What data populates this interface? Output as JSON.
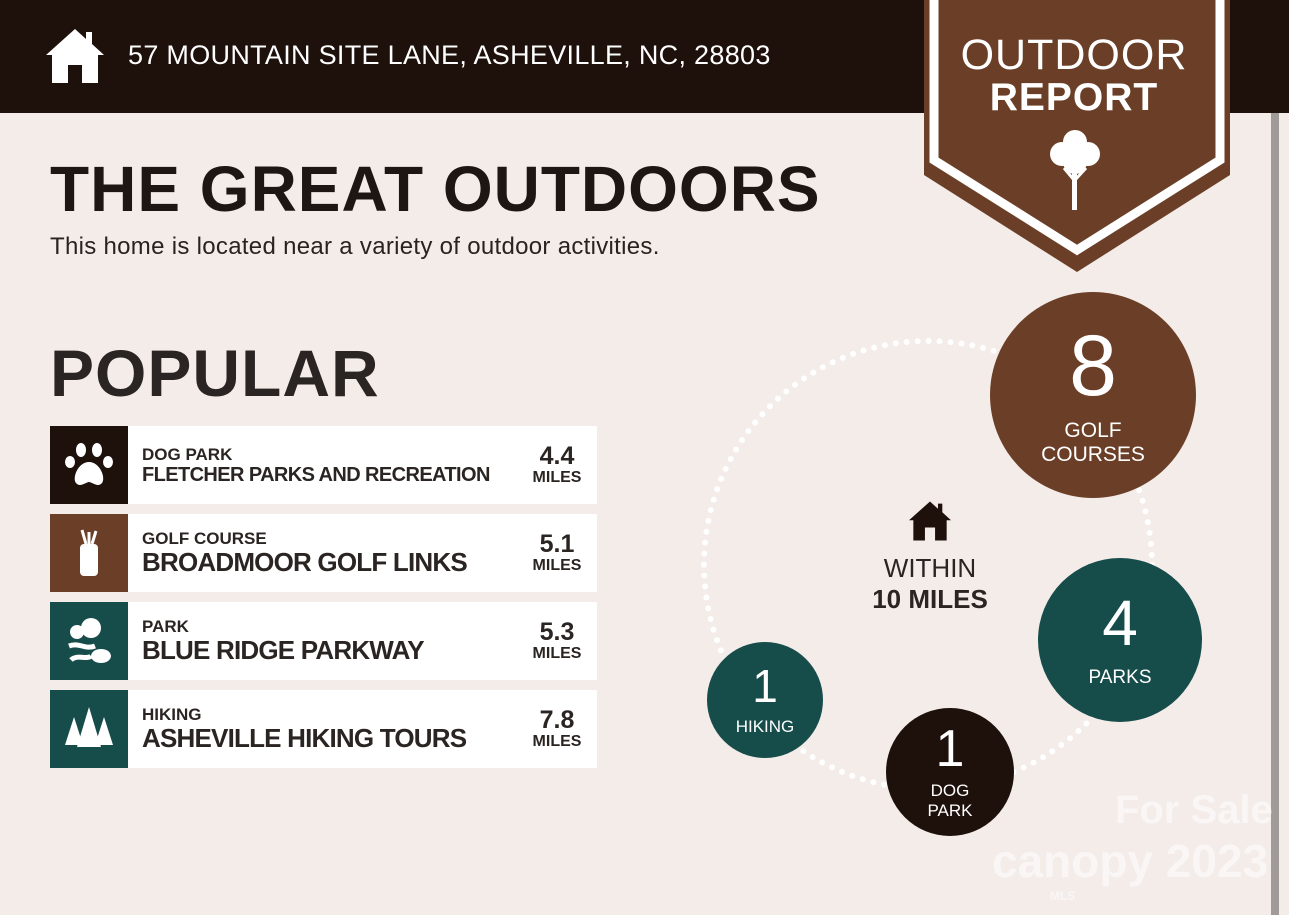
{
  "header": {
    "address": "57 MOUNTAIN SITE LANE, ASHEVILLE, NC, 28803",
    "icon": "home-icon"
  },
  "banner": {
    "line1": "OUTDOOR",
    "line2": "REPORT",
    "icon": "tree-icon"
  },
  "title": "THE GREAT OUTDOORS",
  "subtitle": "This home is located near a variety of outdoor activities.",
  "popular": {
    "heading": "POPULAR",
    "items": [
      {
        "category": "DOG PARK",
        "name": "FLETCHER PARKS AND RECREATION",
        "distance": "4.4",
        "unit": "MILES",
        "icon": "paw-icon",
        "color": "#1e100b"
      },
      {
        "category": "GOLF COURSE",
        "name": "BROADMOOR GOLF LINKS",
        "distance": "5.1",
        "unit": "MILES",
        "icon": "golf-bag-icon",
        "color": "#6b3f27"
      },
      {
        "category": "PARK",
        "name": "BLUE RIDGE PARKWAY",
        "distance": "5.3",
        "unit": "MILES",
        "icon": "park-trees-icon",
        "color": "#164c4a"
      },
      {
        "category": "HIKING",
        "name": "ASHEVILLE HIKING TOURS",
        "distance": "7.8",
        "unit": "MILES",
        "icon": "pine-trees-icon",
        "color": "#164c4a"
      }
    ]
  },
  "within": {
    "line1": "WITHIN",
    "line2": "10 MILES"
  },
  "counts": [
    {
      "count": "8",
      "label1": "GOLF",
      "label2": "COURSES",
      "color": "#6b3f27"
    },
    {
      "count": "4",
      "label1": "PARKS",
      "label2": "",
      "color": "#164c4a"
    },
    {
      "count": "1",
      "label1": "DOG",
      "label2": "PARK",
      "color": "#1e100b"
    },
    {
      "count": "1",
      "label1": "HIKING",
      "label2": "",
      "color": "#164c4a"
    }
  ],
  "watermark": {
    "line1": "For Sale",
    "line2": "canopy 2023",
    "line3": "MLS"
  }
}
